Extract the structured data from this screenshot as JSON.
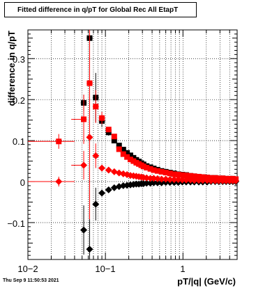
{
  "chart_data": {
    "type": "scatter",
    "title": "Fitted difference in q/pT for Global Rec All EtapT",
    "xlabel": "pT/|q| (GeV/c)",
    "ylabel": "difference in q/pT",
    "x_scale": "log",
    "xlim": [
      0.01,
      5
    ],
    "ylim": [
      -0.19,
      0.37
    ],
    "grid": true,
    "x_tick_labels": [
      "10−2",
      "10−1",
      "1"
    ],
    "y_tick_labels": [
      "−0.1",
      "0",
      "0.1",
      "0.2",
      "0.3"
    ],
    "colors": {
      "black": "#000000",
      "red": "#ff0000"
    },
    "series": [
      {
        "color": "black",
        "marker": "square",
        "x": [
          0.0525,
          0.0625,
          0.075,
          0.09,
          0.11,
          0.13,
          0.15,
          0.17,
          0.19,
          0.21,
          0.23,
          0.25,
          0.27,
          0.29,
          0.31,
          0.34,
          0.38,
          0.42,
          0.47,
          0.53,
          0.6,
          0.68,
          0.77,
          0.87,
          0.98,
          1.1,
          1.25,
          1.4,
          1.6,
          1.8,
          2.05,
          2.3,
          2.6,
          2.9,
          3.25,
          3.6,
          4.0,
          4.4,
          4.8
        ],
        "y": [
          0.192,
          0.35,
          0.205,
          0.148,
          0.12,
          0.1,
          0.088,
          0.078,
          0.07,
          0.064,
          0.058,
          0.053,
          0.049,
          0.045,
          0.042,
          0.038,
          0.035,
          0.032,
          0.029,
          0.026,
          0.024,
          0.022,
          0.02,
          0.018,
          0.017,
          0.016,
          0.014,
          0.013,
          0.012,
          0.011,
          0.01,
          0.009,
          0.009,
          0.008,
          0.008,
          0.007,
          0.007,
          0.007,
          0.006
        ],
        "yerr": [
          0.02,
          0.21,
          0.06,
          0.015,
          0.008,
          0.005,
          0.004,
          0.003,
          0.003,
          0.002,
          0.002,
          0.002,
          0.002,
          0.001,
          0.001,
          0.001,
          0.001,
          0.001,
          0.001,
          0.001,
          0.001,
          0.001,
          0.001,
          0.001,
          0.001,
          0.001,
          0.001,
          0.001,
          0.001,
          0.001,
          0.001,
          0.001,
          0.001,
          0.001,
          0.001,
          0.001,
          0.001,
          0.001,
          0.001
        ]
      },
      {
        "color": "red",
        "marker": "square",
        "x": [
          0.025,
          0.0525,
          0.0625,
          0.075,
          0.09,
          0.11,
          0.13,
          0.15,
          0.17,
          0.19,
          0.21,
          0.23,
          0.25,
          0.27,
          0.29,
          0.31,
          0.34,
          0.38,
          0.42,
          0.47,
          0.53,
          0.6,
          0.68,
          0.77,
          0.87,
          0.98,
          1.1,
          1.25,
          1.4,
          1.6,
          1.8,
          2.05,
          2.3,
          2.6,
          2.9,
          3.25,
          3.6,
          4.0,
          4.4,
          4.8
        ],
        "y": [
          0.098,
          0.152,
          0.24,
          0.183,
          0.155,
          0.127,
          0.11,
          0.079,
          0.067,
          0.06,
          0.054,
          0.05,
          0.046,
          0.043,
          0.04,
          0.037,
          0.034,
          0.031,
          0.028,
          0.026,
          0.024,
          0.022,
          0.02,
          0.018,
          0.017,
          0.016,
          0.015,
          0.014,
          0.013,
          0.012,
          0.011,
          0.01,
          0.009,
          0.009,
          0.008,
          0.008,
          0.007,
          0.007,
          0.007,
          0.006
        ],
        "yerr": [
          0.018,
          0.06,
          0.33,
          0.04,
          0.015,
          0.006,
          0.004,
          0.003,
          0.003,
          0.002,
          0.002,
          0.002,
          0.002,
          0.001,
          0.001,
          0.001,
          0.001,
          0.001,
          0.001,
          0.001,
          0.001,
          0.001,
          0.001,
          0.001,
          0.001,
          0.001,
          0.001,
          0.001,
          0.001,
          0.001,
          0.001,
          0.001,
          0.001,
          0.001,
          0.001,
          0.001,
          0.001,
          0.001,
          0.001,
          0.001
        ]
      },
      {
        "color": "black",
        "marker": "diamond",
        "x": [
          0.0525,
          0.0625,
          0.075,
          0.09,
          0.11,
          0.13,
          0.15,
          0.17,
          0.19,
          0.21,
          0.23,
          0.25,
          0.27,
          0.29,
          0.31,
          0.34,
          0.38,
          0.42,
          0.47,
          0.53,
          0.6,
          0.68,
          0.77,
          0.87,
          0.98,
          1.1,
          1.25,
          1.4,
          1.6,
          1.8,
          2.05,
          2.3,
          2.6,
          2.9,
          3.25,
          3.6,
          4.0,
          4.4,
          4.8
        ],
        "y": [
          -0.118,
          -0.165,
          -0.055,
          -0.028,
          -0.02,
          -0.015,
          -0.012,
          -0.01,
          -0.009,
          -0.008,
          -0.007,
          -0.006,
          -0.006,
          -0.005,
          -0.005,
          -0.004,
          -0.004,
          -0.003,
          -0.003,
          -0.003,
          -0.002,
          -0.002,
          -0.002,
          -0.002,
          -0.001,
          -0.001,
          -0.001,
          -0.001,
          -0.001,
          -0.001,
          -0.001,
          0.0,
          0.0,
          0.0,
          0.0,
          0.0,
          0.0,
          0.0,
          0.0
        ],
        "yerr": [
          0.06,
          0.19,
          0.04,
          0.008,
          0.004,
          0.003,
          0.002,
          0.002,
          0.001,
          0.001,
          0.001,
          0.001,
          0.001,
          0.001,
          0.001,
          0.001,
          0.001,
          0.001,
          0.001,
          0.001,
          0.001,
          0.001,
          0.001,
          0.001,
          0.001,
          0.001,
          0.001,
          0.001,
          0.001,
          0.001,
          0.001,
          0.001,
          0.001,
          0.001,
          0.001,
          0.001,
          0.001,
          0.001,
          0.001
        ]
      },
      {
        "color": "red",
        "marker": "diamond",
        "x": [
          0.025,
          0.0525,
          0.0625,
          0.075,
          0.09,
          0.11,
          0.13,
          0.15,
          0.17,
          0.19,
          0.21,
          0.23,
          0.25,
          0.27,
          0.29,
          0.31,
          0.34,
          0.38,
          0.42,
          0.47,
          0.53,
          0.6,
          0.68,
          0.77,
          0.87,
          0.98,
          1.1,
          1.25,
          1.4,
          1.6,
          1.8,
          2.05,
          2.3,
          2.6,
          2.9,
          3.25,
          3.6,
          4.0,
          4.4,
          4.8
        ],
        "y": [
          0.0,
          0.04,
          0.108,
          0.063,
          0.033,
          0.028,
          0.024,
          0.021,
          0.019,
          0.017,
          0.015,
          0.014,
          0.013,
          0.012,
          0.011,
          0.01,
          0.009,
          0.008,
          0.008,
          0.007,
          0.006,
          0.006,
          0.005,
          0.005,
          0.005,
          0.004,
          0.004,
          0.004,
          0.003,
          0.003,
          0.003,
          0.003,
          0.002,
          0.002,
          0.002,
          0.002,
          0.002,
          0.002,
          0.002,
          0.002
        ],
        "yerr": [
          0.012,
          0.035,
          0.2,
          0.03,
          0.008,
          0.004,
          0.003,
          0.002,
          0.002,
          0.001,
          0.001,
          0.001,
          0.001,
          0.001,
          0.001,
          0.001,
          0.001,
          0.001,
          0.001,
          0.001,
          0.001,
          0.001,
          0.001,
          0.001,
          0.001,
          0.001,
          0.001,
          0.001,
          0.001,
          0.001,
          0.001,
          0.001,
          0.001,
          0.001,
          0.001,
          0.001,
          0.001,
          0.001,
          0.001,
          0.001
        ]
      }
    ]
  },
  "footer": {
    "date": "Thu Sep  9 11:50:53 2021"
  }
}
